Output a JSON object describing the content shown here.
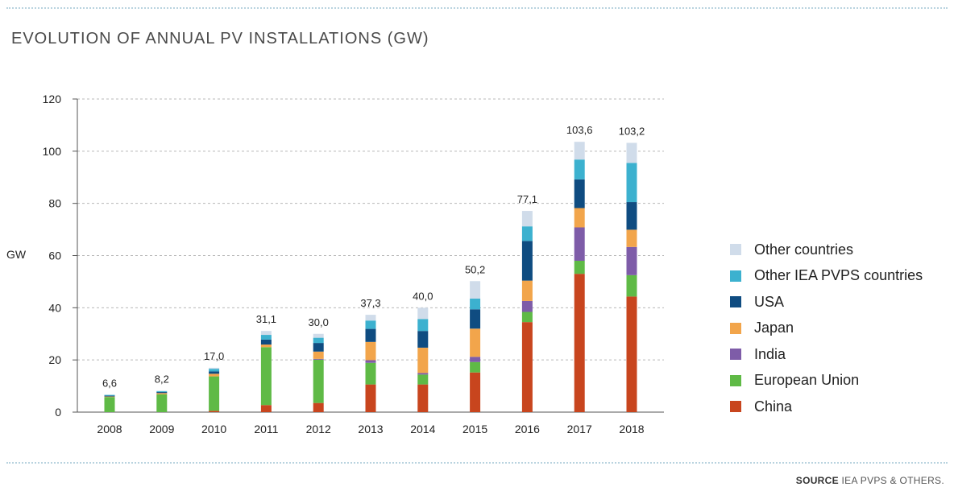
{
  "title": "EVOLUTION OF ANNUAL PV INSTALLATIONS (GW)",
  "source": {
    "label": "SOURCE",
    "text": "IEA PVPS & OTHERS."
  },
  "chart_data": {
    "type": "bar",
    "stacked": true,
    "title": "EVOLUTION OF ANNUAL PV INSTALLATIONS (GW)",
    "xlabel": "",
    "ylabel": "GW",
    "ylim": [
      0,
      120
    ],
    "yticks": [
      "0",
      "20",
      "40",
      "60",
      "80",
      "100",
      "120"
    ],
    "grid": true,
    "legend_position": "right",
    "categories": [
      "2008",
      "2009",
      "2010",
      "2011",
      "2012",
      "2013",
      "2014",
      "2015",
      "2016",
      "2017",
      "2018"
    ],
    "totals": [
      "6,6",
      "8,2",
      "17,0",
      "31,1",
      "30,0",
      "37,3",
      "40,0",
      "50,2",
      "77,1",
      "103,6",
      "103,2"
    ],
    "series": [
      {
        "name": "China",
        "color": "#c8451e",
        "values": [
          0.0,
          0.0,
          0.5,
          2.7,
          3.5,
          10.6,
          10.6,
          15.2,
          34.5,
          53.0,
          44.3
        ]
      },
      {
        "name": "European Union",
        "color": "#5fba46",
        "values": [
          5.8,
          6.8,
          13.2,
          22.2,
          16.6,
          8.3,
          3.8,
          4.0,
          3.9,
          5.0,
          8.2
        ]
      },
      {
        "name": "India",
        "color": "#7e5ca8",
        "values": [
          0.0,
          0.0,
          0.0,
          0.0,
          0.3,
          1.0,
          0.6,
          2.0,
          4.2,
          12.8,
          10.8
        ]
      },
      {
        "name": "Japan",
        "color": "#f2a54b",
        "values": [
          0.2,
          0.5,
          1.0,
          1.0,
          2.8,
          7.0,
          9.7,
          10.8,
          7.8,
          7.4,
          6.6
        ]
      },
      {
        "name": "USA",
        "color": "#0f4c81",
        "values": [
          0.3,
          0.4,
          0.9,
          1.9,
          3.3,
          5.0,
          6.4,
          7.4,
          15.2,
          11.0,
          10.6
        ]
      },
      {
        "name": "Other IEA PVPS countries",
        "color": "#3cb1cf",
        "values": [
          0.3,
          0.3,
          1.0,
          1.8,
          2.0,
          3.2,
          4.6,
          4.1,
          5.6,
          7.6,
          15.0
        ]
      },
      {
        "name": "Other countries",
        "color": "#d0dcea",
        "values": [
          0.0,
          0.2,
          0.4,
          1.5,
          1.5,
          2.2,
          4.3,
          6.7,
          5.9,
          6.8,
          7.7
        ]
      }
    ]
  },
  "legend": [
    {
      "label": "Other countries",
      "color": "#d0dcea"
    },
    {
      "label": "Other IEA PVPS countries",
      "color": "#3cb1cf"
    },
    {
      "label": "USA",
      "color": "#0f4c81"
    },
    {
      "label": "Japan",
      "color": "#f2a54b"
    },
    {
      "label": "India",
      "color": "#7e5ca8"
    },
    {
      "label": "European Union",
      "color": "#5fba46"
    },
    {
      "label": "China",
      "color": "#c8451e"
    }
  ]
}
